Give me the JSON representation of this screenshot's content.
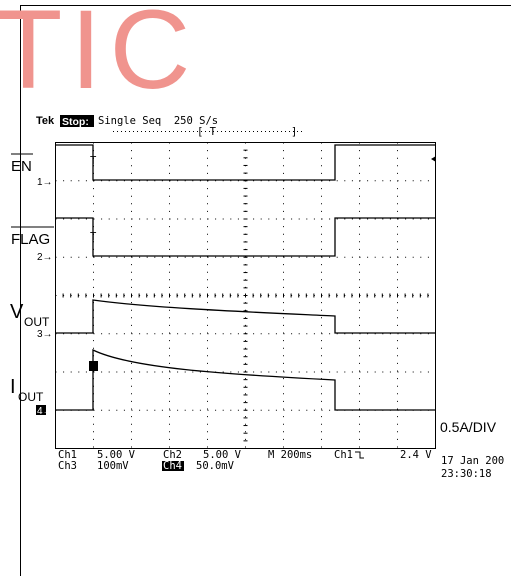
{
  "watermark": "TIC",
  "header": {
    "brand": "Tek",
    "status": "Stop:",
    "mode": "Single Seq  250 S/s"
  },
  "channels": [
    {
      "label": "EN",
      "marker": "1→"
    },
    {
      "label": "FLAG",
      "marker": "2→"
    },
    {
      "label": "V",
      "sub": "OUT",
      "marker": "3→"
    },
    {
      "label": "I",
      "sub": "OUT",
      "marker": "4→"
    }
  ],
  "scale_note": "0.5A/DIV",
  "footer": {
    "row1": [
      "Ch1",
      "5.00 V",
      "Ch2",
      "5.00 V",
      "M 200ms",
      "Ch1",
      "2.4 V"
    ],
    "row2": [
      "Ch3",
      "100mV",
      "Ch4",
      "50.0mV"
    ],
    "date": "17 Jan 200",
    "time": "23:30:18"
  }
}
